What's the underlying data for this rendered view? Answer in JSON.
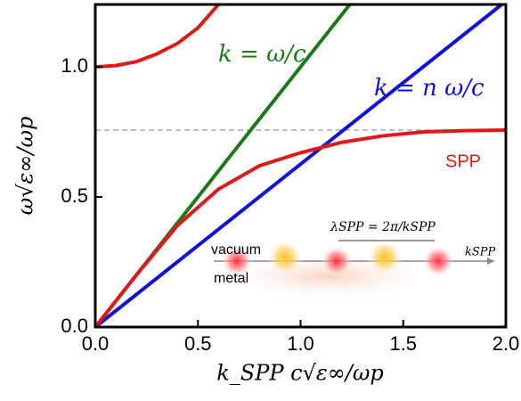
{
  "chart_data": {
    "type": "line",
    "x_label": "k_SPP c√ε∞/ωp",
    "y_label": "ω√ε∞/ωp",
    "xlim": [
      0,
      2.0
    ],
    "ylim": [
      0,
      1.24
    ],
    "xticks": [
      {
        "value": 0,
        "label": "0.0"
      },
      {
        "value": 0.5,
        "label": "0.5"
      },
      {
        "value": 1.0,
        "label": "1.0"
      },
      {
        "value": 1.5,
        "label": "1.5"
      },
      {
        "value": 2.0,
        "label": "2.0"
      }
    ],
    "yticks": [
      {
        "value": 0,
        "label": "0.0"
      },
      {
        "value": 0.5,
        "label": "0.5"
      },
      {
        "value": 1.0,
        "label": "1.0"
      }
    ],
    "hline": 0.757,
    "series": [
      {
        "color": "#1a7a1a",
        "x": [
          0,
          1.24
        ],
        "values": [
          0,
          1.24
        ]
      },
      {
        "color": "#1010e0",
        "x": [
          0,
          1.98
        ],
        "values": [
          0,
          1.24
        ]
      },
      {
        "color": "#e01818",
        "x": [
          0,
          0.2,
          0.4,
          0.6,
          0.8,
          1.0,
          1.2,
          1.4,
          1.6,
          1.8,
          2.0
        ],
        "values": [
          0,
          0.2,
          0.39,
          0.53,
          0.62,
          0.67,
          0.71,
          0.735,
          0.75,
          0.755,
          0.757
        ]
      },
      {
        "color": "#e01818",
        "x": [
          0,
          0.1,
          0.2,
          0.3,
          0.4,
          0.5,
          0.6
        ],
        "values": [
          1.0,
          1.005,
          1.02,
          1.05,
          1.09,
          1.15,
          1.24
        ]
      }
    ],
    "annotations": [
      {
        "text": "k = ω/c",
        "color": "#1a7a1a"
      },
      {
        "text": "k = n ω/c",
        "color": "#1010e0"
      },
      {
        "text": "SPP",
        "color": "#e01818"
      },
      {
        "text": "λSPP = 2π/kSPP",
        "color": "#000000"
      },
      {
        "text": "vacuum",
        "color": "#000000"
      },
      {
        "text": "metal",
        "color": "#000000"
      },
      {
        "text": "kSPP",
        "color": "#000000"
      }
    ]
  }
}
